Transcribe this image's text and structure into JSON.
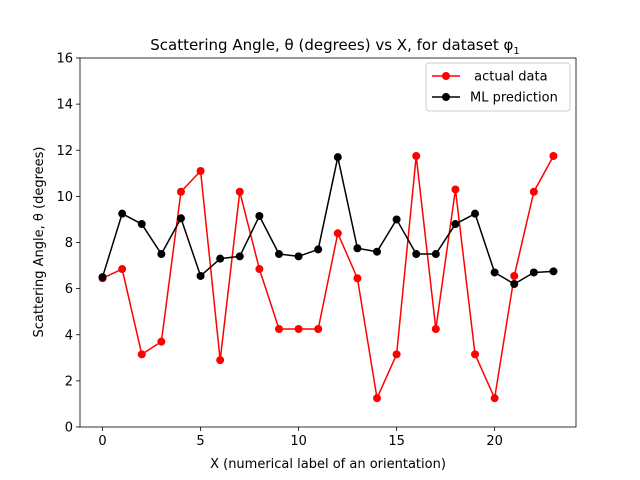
{
  "chart_data": {
    "type": "line",
    "title": "Scattering Angle, θ (degrees) vs X, for dataset φ",
    "title_subscript": "1",
    "xlabel": "X (numerical label of an orientation)",
    "ylabel": "Scattering Angle, θ (degrees)",
    "xlim": [
      -1.15,
      24.15
    ],
    "ylim": [
      0,
      16
    ],
    "xticks": [
      0,
      5,
      10,
      15,
      20
    ],
    "yticks": [
      0,
      2,
      4,
      6,
      8,
      10,
      12,
      14,
      16
    ],
    "grid": false,
    "legend_position": "top-right",
    "x": [
      0,
      1,
      2,
      3,
      4,
      5,
      6,
      7,
      8,
      9,
      10,
      11,
      12,
      13,
      14,
      15,
      16,
      17,
      18,
      19,
      20,
      21,
      22,
      23
    ],
    "series": [
      {
        "name": " actual data",
        "color": "#ff0000",
        "values": [
          6.45,
          6.85,
          3.15,
          3.7,
          10.2,
          11.1,
          2.9,
          10.2,
          6.85,
          4.25,
          4.25,
          4.25,
          8.4,
          6.45,
          1.25,
          3.15,
          11.75,
          4.25,
          10.3,
          3.15,
          1.25,
          6.55,
          10.2,
          11.75
        ]
      },
      {
        "name": "ML prediction",
        "color": "#000000",
        "values": [
          6.5,
          9.25,
          8.8,
          7.5,
          9.05,
          6.55,
          7.3,
          7.4,
          9.15,
          7.5,
          7.4,
          7.7,
          11.7,
          7.75,
          7.6,
          9.0,
          7.5,
          7.5,
          8.8,
          9.25,
          6.7,
          6.2,
          6.7,
          6.75
        ]
      }
    ]
  }
}
